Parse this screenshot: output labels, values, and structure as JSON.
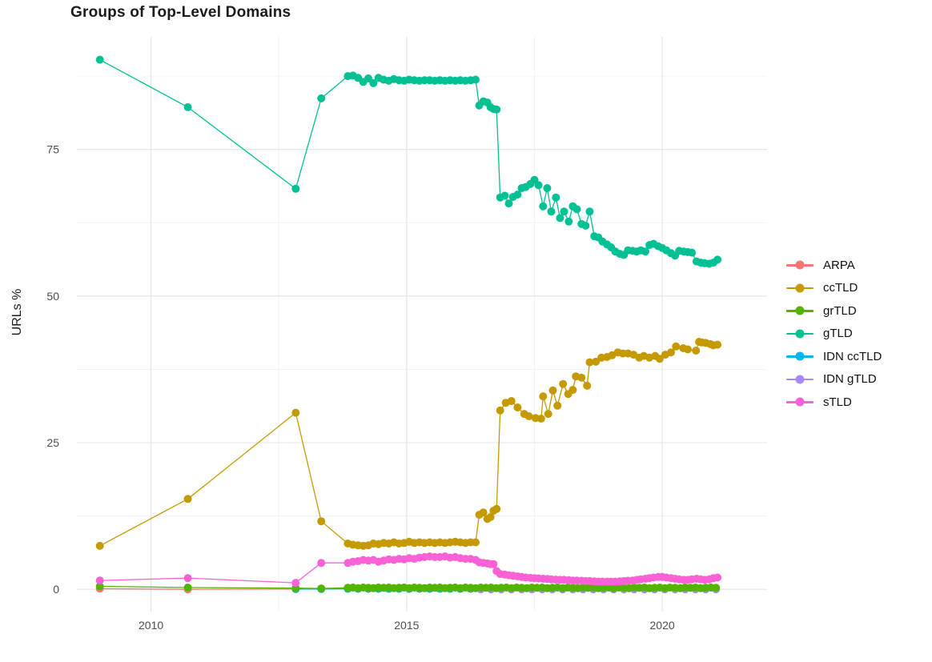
{
  "title": "Groups of Top-Level Domains",
  "chart_data": {
    "type": "line",
    "title": "Groups of Top-Level Domains",
    "xlabel": "",
    "ylabel": "URLs %",
    "grid": true,
    "legend_position": "right",
    "marker": "circle",
    "x_range": [
      2008.55,
      2022.05
    ],
    "y_range": [
      -3.8,
      94.2
    ],
    "x_ticks": [
      2010,
      2015,
      2020
    ],
    "x_tick_labels": [
      "2010",
      "2015",
      "2020"
    ],
    "x_minor_ticks": [
      2012.5,
      2017.5
    ],
    "y_ticks": [
      0,
      25,
      50,
      75
    ],
    "y_tick_labels": [
      "0",
      "25",
      "50",
      "75"
    ],
    "y_minor_ticks": [
      12.5,
      37.5,
      62.5,
      87.5
    ],
    "grid_major_color": "#e3e3e3",
    "grid_minor_color": "#f0f0f0",
    "legend_order": [
      "ARPA",
      "ccTLD",
      "grTLD",
      "gTLD",
      "IDN ccTLD",
      "IDN gTLD",
      "sTLD"
    ],
    "series": [
      {
        "name": "ARPA",
        "color": "#F8766D",
        "x": [
          2009.0,
          2010.72,
          2012.83
        ],
        "y": [
          0.1,
          0.0,
          0.05
        ]
      },
      {
        "name": "IDN ccTLD",
        "color": "#00B6EB",
        "x": [
          2012.83,
          2013.33,
          2013.85,
          2014.05,
          2014.25,
          2014.45,
          2014.65,
          2014.85,
          2015.05,
          2015.25,
          2015.45,
          2015.65,
          2015.85,
          2016.05,
          2016.25,
          2016.45,
          2016.65,
          2016.85,
          2017.05,
          2017.25,
          2017.45,
          2017.65,
          2017.85,
          2018.05,
          2018.25,
          2018.45,
          2018.65,
          2018.85,
          2019.05,
          2019.25,
          2019.45,
          2019.65,
          2019.85,
          2020.05,
          2020.25,
          2020.45,
          2020.65,
          2020.85,
          2021.05
        ],
        "y": [
          0.05,
          0.05,
          0.08,
          0.08,
          0.08,
          0.08,
          0.08,
          0.08,
          0.08,
          0.08,
          0.08,
          0.08,
          0.08,
          0.08,
          0.08,
          0.08,
          0.08,
          0.08,
          0.08,
          0.08,
          0.08,
          0.08,
          0.08,
          0.08,
          0.08,
          0.08,
          0.08,
          0.08,
          0.08,
          0.08,
          0.08,
          0.08,
          0.08,
          0.08,
          0.08,
          0.08,
          0.08,
          0.08,
          0.08
        ]
      },
      {
        "name": "IDN gTLD",
        "color": "#A58AFF",
        "x": [
          2016.45,
          2016.65,
          2016.85,
          2017.05,
          2017.25,
          2017.45,
          2017.65,
          2017.85,
          2018.05,
          2018.25,
          2018.45,
          2018.65,
          2018.85,
          2019.05,
          2019.25,
          2019.45,
          2019.65,
          2019.85,
          2020.05,
          2020.25,
          2020.45,
          2020.65,
          2020.85,
          2021.05
        ],
        "y": [
          0.0,
          0.0,
          0.0,
          0.0,
          0.0,
          0.0,
          0.0,
          0.0,
          0.0,
          0.0,
          0.0,
          0.0,
          0.0,
          0.0,
          0.0,
          0.0,
          0.0,
          0.0,
          0.0,
          0.0,
          0.0,
          0.0,
          0.0,
          0.0
        ]
      },
      {
        "name": "grTLD",
        "color": "#53B400",
        "x": [
          2009.0,
          2010.72,
          2012.83,
          2013.33,
          2013.85,
          2013.95,
          2014.05,
          2014.15,
          2014.25,
          2014.35,
          2014.45,
          2014.55,
          2014.65,
          2014.75,
          2014.85,
          2014.95,
          2015.05,
          2015.15,
          2015.25,
          2015.35,
          2015.45,
          2015.55,
          2015.65,
          2015.75,
          2015.85,
          2015.95,
          2016.05,
          2016.15,
          2016.25,
          2016.35,
          2016.45,
          2016.55,
          2016.65,
          2016.75,
          2016.85,
          2016.95,
          2017.05,
          2017.15,
          2017.25,
          2017.35,
          2017.45,
          2017.55,
          2017.65,
          2017.75,
          2017.85,
          2017.95,
          2018.05,
          2018.15,
          2018.25,
          2018.35,
          2018.45,
          2018.55,
          2018.65,
          2018.75,
          2018.85,
          2018.95,
          2019.05,
          2019.15,
          2019.25,
          2019.35,
          2019.45,
          2019.55,
          2019.65,
          2019.75,
          2019.85,
          2019.95,
          2020.05,
          2020.15,
          2020.25,
          2020.35,
          2020.45,
          2020.55,
          2020.65,
          2020.75,
          2020.85,
          2020.95,
          2021.05
        ],
        "y": [
          0.5,
          0.3,
          0.2,
          0.15,
          0.25,
          0.3,
          0.2,
          0.3,
          0.25,
          0.2,
          0.3,
          0.25,
          0.3,
          0.2,
          0.25,
          0.3,
          0.2,
          0.3,
          0.25,
          0.2,
          0.3,
          0.25,
          0.3,
          0.2,
          0.25,
          0.3,
          0.2,
          0.3,
          0.25,
          0.2,
          0.3,
          0.25,
          0.3,
          0.2,
          0.25,
          0.3,
          0.2,
          0.3,
          0.25,
          0.2,
          0.3,
          0.25,
          0.3,
          0.2,
          0.25,
          0.3,
          0.2,
          0.3,
          0.25,
          0.2,
          0.3,
          0.25,
          0.3,
          0.2,
          0.25,
          0.3,
          0.2,
          0.3,
          0.25,
          0.2,
          0.3,
          0.25,
          0.3,
          0.2,
          0.25,
          0.3,
          0.2,
          0.3,
          0.25,
          0.2,
          0.3,
          0.25,
          0.3,
          0.2,
          0.25,
          0.3,
          0.25
        ]
      },
      {
        "name": "sTLD",
        "color": "#FB61D7",
        "x": [
          2009.0,
          2010.72,
          2012.83,
          2013.33,
          2013.85,
          2013.95,
          2014.05,
          2014.15,
          2014.25,
          2014.35,
          2014.45,
          2014.55,
          2014.65,
          2014.75,
          2014.85,
          2014.95,
          2015.05,
          2015.15,
          2015.25,
          2015.35,
          2015.45,
          2015.55,
          2015.65,
          2015.75,
          2015.85,
          2015.95,
          2016.05,
          2016.15,
          2016.25,
          2016.35,
          2016.42,
          2016.5,
          2016.58,
          2016.64,
          2016.7,
          2016.76,
          2016.83,
          2016.92,
          2017.0,
          2017.08,
          2017.17,
          2017.25,
          2017.33,
          2017.42,
          2017.5,
          2017.58,
          2017.67,
          2017.75,
          2017.83,
          2017.92,
          2018.0,
          2018.08,
          2018.17,
          2018.25,
          2018.33,
          2018.42,
          2018.5,
          2018.58,
          2018.67,
          2018.75,
          2018.83,
          2018.92,
          2019.0,
          2019.08,
          2019.17,
          2019.25,
          2019.33,
          2019.42,
          2019.5,
          2019.58,
          2019.67,
          2019.75,
          2019.83,
          2019.92,
          2020.0,
          2020.08,
          2020.17,
          2020.25,
          2020.33,
          2020.42,
          2020.5,
          2020.58,
          2020.67,
          2020.75,
          2020.83,
          2020.92,
          2021.0,
          2021.08
        ],
        "y": [
          1.5,
          1.9,
          1.1,
          4.5,
          4.5,
          4.7,
          4.8,
          5.0,
          4.9,
          5.0,
          4.7,
          4.9,
          5.1,
          5.0,
          5.2,
          5.1,
          5.3,
          5.2,
          5.4,
          5.5,
          5.6,
          5.5,
          5.5,
          5.6,
          5.4,
          5.5,
          5.3,
          5.2,
          5.2,
          5.0,
          4.6,
          4.5,
          4.4,
          4.3,
          4.3,
          3.1,
          2.6,
          2.5,
          2.4,
          2.3,
          2.2,
          2.1,
          2.0,
          1.95,
          1.9,
          1.85,
          1.8,
          1.75,
          1.7,
          1.65,
          1.6,
          1.6,
          1.55,
          1.5,
          1.5,
          1.45,
          1.4,
          1.4,
          1.35,
          1.3,
          1.3,
          1.3,
          1.3,
          1.3,
          1.35,
          1.4,
          1.45,
          1.5,
          1.6,
          1.7,
          1.8,
          1.9,
          2.0,
          2.1,
          2.1,
          2.0,
          1.9,
          1.8,
          1.7,
          1.6,
          1.6,
          1.7,
          1.8,
          1.7,
          1.6,
          1.7,
          1.9,
          2.0
        ]
      },
      {
        "name": "ccTLD",
        "color": "#C49A00",
        "x": [
          2009.0,
          2010.72,
          2012.83,
          2013.33,
          2013.85,
          2013.95,
          2014.05,
          2014.15,
          2014.25,
          2014.35,
          2014.45,
          2014.55,
          2014.65,
          2014.75,
          2014.85,
          2014.95,
          2015.05,
          2015.15,
          2015.25,
          2015.35,
          2015.45,
          2015.55,
          2015.65,
          2015.75,
          2015.85,
          2015.95,
          2016.05,
          2016.15,
          2016.25,
          2016.35,
          2016.42,
          2016.5,
          2016.58,
          2016.64,
          2016.7,
          2016.76,
          2016.83,
          2016.94,
          2017.05,
          2017.17,
          2017.3,
          2017.39,
          2017.52,
          2017.63,
          2017.67,
          2017.77,
          2017.86,
          2017.95,
          2018.06,
          2018.16,
          2018.25,
          2018.31,
          2018.42,
          2018.53,
          2018.58,
          2018.7,
          2018.81,
          2018.92,
          2019.02,
          2019.13,
          2019.23,
          2019.33,
          2019.44,
          2019.55,
          2019.64,
          2019.75,
          2019.86,
          2019.95,
          2020.06,
          2020.17,
          2020.27,
          2020.41,
          2020.5,
          2020.66,
          2020.72,
          2020.77,
          2020.85,
          2020.94,
          2021.0,
          2021.08
        ],
        "y": [
          7.4,
          15.4,
          30.1,
          11.6,
          7.8,
          7.6,
          7.5,
          7.4,
          7.5,
          7.8,
          7.7,
          7.9,
          7.8,
          8.0,
          7.8,
          7.9,
          8.1,
          7.9,
          8.0,
          7.9,
          8.0,
          7.9,
          8.0,
          7.9,
          8.0,
          8.1,
          8.0,
          7.9,
          8.0,
          8.0,
          12.7,
          13.1,
          12.0,
          12.3,
          13.4,
          13.7,
          30.5,
          31.8,
          32.1,
          31.0,
          29.9,
          29.5,
          29.2,
          29.1,
          32.9,
          29.9,
          33.9,
          31.3,
          35.0,
          33.3,
          34.0,
          36.3,
          36.1,
          34.7,
          38.7,
          38.8,
          39.5,
          39.6,
          39.9,
          40.4,
          40.2,
          40.2,
          40.0,
          39.5,
          39.8,
          39.5,
          39.8,
          39.3,
          40.0,
          40.4,
          41.4,
          41.1,
          40.9,
          40.7,
          42.2,
          42.1,
          42.0,
          41.8,
          41.6,
          41.7
        ]
      },
      {
        "name": "gTLD",
        "color": "#00C094",
        "x": [
          2009.0,
          2010.72,
          2012.83,
          2013.33,
          2013.85,
          2013.95,
          2014.05,
          2014.15,
          2014.25,
          2014.35,
          2014.45,
          2014.55,
          2014.65,
          2014.75,
          2014.85,
          2014.95,
          2015.05,
          2015.15,
          2015.25,
          2015.35,
          2015.45,
          2015.55,
          2015.65,
          2015.75,
          2015.85,
          2015.95,
          2016.05,
          2016.15,
          2016.25,
          2016.35,
          2016.42,
          2016.5,
          2016.58,
          2016.64,
          2016.7,
          2016.76,
          2016.83,
          2016.92,
          2017.0,
          2017.08,
          2017.17,
          2017.25,
          2017.33,
          2017.42,
          2017.5,
          2017.58,
          2017.67,
          2017.75,
          2017.83,
          2017.92,
          2018.0,
          2018.08,
          2018.17,
          2018.25,
          2018.33,
          2018.42,
          2018.5,
          2018.58,
          2018.67,
          2018.75,
          2018.83,
          2018.92,
          2019.0,
          2019.08,
          2019.17,
          2019.25,
          2019.33,
          2019.42,
          2019.5,
          2019.58,
          2019.67,
          2019.75,
          2019.83,
          2019.92,
          2020.0,
          2020.08,
          2020.17,
          2020.25,
          2020.33,
          2020.42,
          2020.5,
          2020.58,
          2020.67,
          2020.75,
          2020.83,
          2020.92,
          2021.0,
          2021.08
        ],
        "y": [
          90.3,
          82.2,
          68.3,
          83.7,
          87.5,
          87.6,
          87.2,
          86.5,
          87.1,
          86.3,
          87.2,
          86.9,
          86.7,
          87.0,
          86.8,
          86.7,
          86.9,
          86.8,
          86.7,
          86.8,
          86.8,
          86.7,
          86.8,
          86.7,
          86.8,
          86.7,
          86.8,
          86.7,
          86.8,
          86.9,
          82.5,
          83.2,
          83.0,
          82.2,
          81.9,
          81.8,
          66.8,
          67.1,
          65.8,
          66.9,
          67.3,
          68.4,
          68.6,
          69.1,
          69.8,
          68.9,
          65.3,
          68.4,
          64.4,
          66.8,
          63.3,
          64.4,
          62.7,
          65.3,
          64.8,
          62.3,
          62.0,
          64.4,
          60.2,
          60.0,
          59.3,
          58.8,
          58.3,
          57.6,
          57.2,
          57.0,
          57.8,
          57.7,
          57.6,
          57.8,
          57.6,
          58.7,
          58.9,
          58.5,
          58.2,
          57.8,
          57.3,
          56.9,
          57.7,
          57.6,
          57.5,
          57.4,
          55.9,
          55.7,
          55.6,
          55.5,
          55.7,
          56.2
        ]
      }
    ]
  }
}
